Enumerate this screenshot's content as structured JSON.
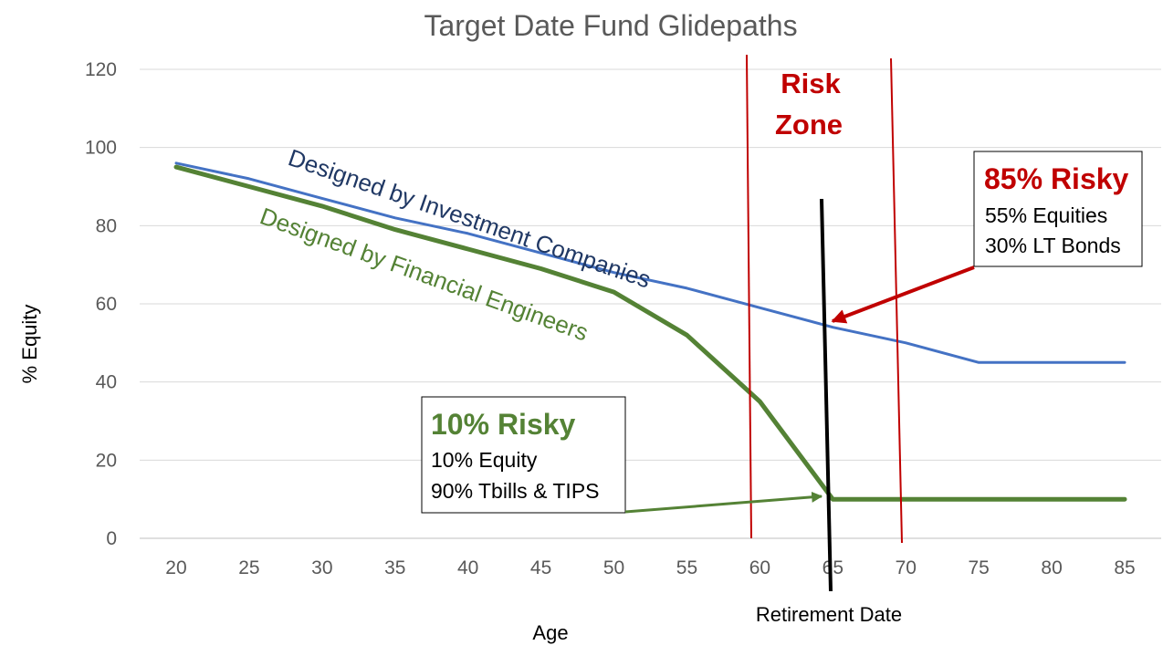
{
  "chart_data": {
    "type": "line",
    "title": "Target Date Fund Glidepaths",
    "xlabel": "Age",
    "ylabel": "% Equity",
    "ylim": [
      0,
      120
    ],
    "yticks": [
      0,
      20,
      40,
      60,
      80,
      100,
      120
    ],
    "grid": true,
    "categories": [
      "20",
      "25",
      "30",
      "35",
      "40",
      "45",
      "50",
      "55",
      "60",
      "65",
      "70",
      "75",
      "80",
      "85"
    ],
    "series": [
      {
        "name": "Designed by Investment Companies",
        "color": "#4472c4",
        "values": [
          96,
          92,
          87,
          82,
          78,
          73,
          68,
          64,
          59,
          54,
          50,
          45,
          45,
          45
        ]
      },
      {
        "name": "Designed by Financial Engineers",
        "color": "#548235",
        "values": [
          95,
          90,
          85,
          79,
          74,
          69,
          63,
          52,
          35,
          10,
          10,
          10,
          10,
          10
        ]
      }
    ],
    "annotations": {
      "risk_zone": {
        "line1": "Risk",
        "line2": "Zone",
        "color": "#c00000"
      },
      "retirement": {
        "label": "Retirement Date",
        "age": 65
      },
      "box_risky_85": {
        "heading": "85% Risky",
        "line1": "55% Equities",
        "line2": "30% LT Bonds",
        "color": "#c00000"
      },
      "box_risky_10": {
        "heading": "10% Risky",
        "line1": "10% Equity",
        "line2": "90% Tbills & TIPS",
        "color": "#548235"
      }
    }
  }
}
